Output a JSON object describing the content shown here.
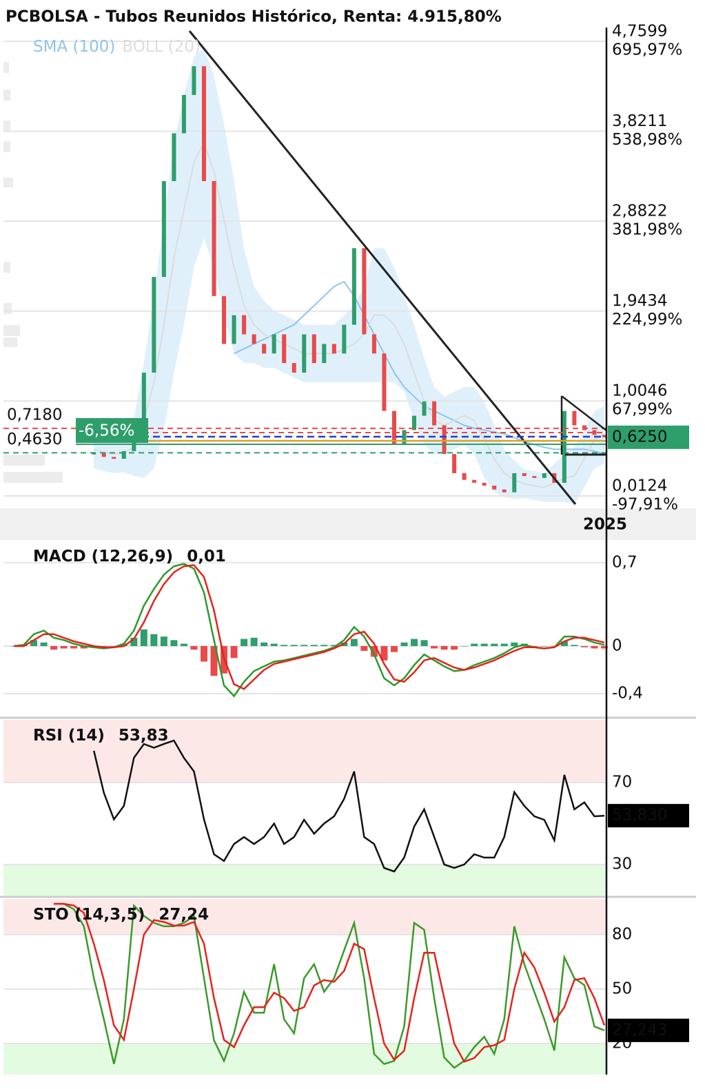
{
  "chart_data": [
    {
      "type": "candlestick",
      "title": "PCBOLSA - Tubos Reunidos Histórico, Renta: 4.915,80%",
      "values": [
        null,
        null,
        null,
        null,
        null,
        null,
        null,
        null,
        0.46,
        0.42,
        0.4,
        0.48,
        0.62,
        1.3,
        2.3,
        3.3,
        3.8,
        4.2,
        4.5,
        3.3,
        2.1,
        1.6,
        1.9,
        1.7,
        1.6,
        1.5,
        1.7,
        1.4,
        1.3,
        1.7,
        1.4,
        1.6,
        1.5,
        1.8,
        2.6,
        1.7,
        1.5,
        0.9,
        0.55,
        0.7,
        0.85,
        1.0,
        0.75,
        0.45,
        0.25,
        0.18,
        0.15,
        0.12,
        0.08,
        0.05,
        0.25,
        0.22,
        0.2,
        0.25,
        0.15,
        0.9,
        0.75,
        0.7,
        0.65,
        0.625
      ],
      "up_color": "#2e9e6b",
      "down_color": "#e84a4a",
      "series": [
        {
          "name": "SMA (100)",
          "color": "#8fc3ee",
          "values": [
            null,
            null,
            null,
            null,
            null,
            null,
            null,
            null,
            null,
            null,
            null,
            null,
            null,
            null,
            null,
            null,
            null,
            null,
            null,
            null,
            null,
            null,
            1.5,
            1.55,
            1.6,
            1.65,
            1.7,
            1.75,
            1.8,
            1.9,
            2.0,
            2.1,
            2.2,
            2.25,
            2.1,
            1.9,
            1.7,
            1.5,
            1.3,
            1.15,
            1.05,
            0.95,
            0.9,
            0.85,
            0.8,
            0.75,
            0.72,
            0.7,
            0.68,
            0.66,
            0.62,
            0.58,
            0.55,
            0.52,
            0.5,
            0.5,
            0.5,
            0.5,
            0.48,
            0.45
          ]
        },
        {
          "name": "BOLL (20)",
          "color": "#dcdcdc",
          "band_color": "#dbeefb",
          "values": [
            null,
            null,
            null,
            null,
            null,
            null,
            null,
            null,
            0.5,
            0.47,
            0.45,
            0.46,
            0.52,
            0.8,
            1.2,
            1.8,
            2.5,
            3.0,
            3.5,
            3.7,
            3.4,
            2.9,
            2.4,
            2.0,
            1.8,
            1.7,
            1.65,
            1.6,
            1.55,
            1.5,
            1.5,
            1.5,
            1.5,
            1.55,
            1.6,
            1.7,
            1.9,
            1.9,
            1.8,
            1.6,
            1.3,
            1.0,
            0.8,
            0.75,
            0.8,
            0.85,
            0.8,
            0.6,
            0.4,
            0.25,
            0.18,
            0.14,
            0.12,
            0.1,
            0.15,
            0.2,
            0.22,
            0.4,
            0.6,
            0.65
          ],
          "upper": [
            null,
            null,
            null,
            null,
            null,
            null,
            null,
            null,
            0.7,
            0.67,
            0.65,
            0.66,
            0.82,
            1.4,
            2.1,
            2.9,
            3.7,
            4.2,
            4.6,
            4.7,
            4.4,
            3.9,
            3.3,
            2.6,
            2.2,
            2.05,
            1.95,
            1.9,
            1.85,
            1.8,
            1.8,
            1.8,
            1.8,
            1.9,
            2.0,
            2.2,
            2.6,
            2.6,
            2.4,
            2.1,
            1.8,
            1.45,
            1.15,
            1.05,
            1.1,
            1.15,
            1.15,
            1.0,
            0.75,
            0.5,
            0.38,
            0.29,
            0.27,
            0.25,
            0.35,
            0.45,
            0.52,
            0.7,
            0.9,
            0.95
          ],
          "lower": [
            null,
            null,
            null,
            null,
            null,
            null,
            null,
            null,
            0.3,
            0.27,
            0.25,
            0.26,
            0.22,
            0.2,
            0.3,
            0.7,
            1.3,
            1.8,
            2.4,
            2.7,
            2.4,
            1.9,
            1.5,
            1.4,
            1.4,
            1.35,
            1.35,
            1.3,
            1.25,
            1.2,
            1.2,
            1.2,
            1.2,
            1.2,
            1.2,
            1.2,
            1.2,
            1.2,
            1.2,
            1.1,
            0.8,
            0.55,
            0.45,
            0.45,
            0.5,
            0.55,
            0.45,
            0.2,
            0.05,
            0.0,
            -0.02,
            -0.01,
            -0.03,
            -0.05,
            -0.05,
            -0.05,
            -0.08,
            0.1,
            0.3,
            0.35
          ]
        }
      ],
      "ylim": [
        -0.0955,
        4.904
      ],
      "yticks": [
        {
          "value": 0.0124,
          "label": "0,0124"
        },
        {
          "value": 1.0046,
          "label": "1,0046"
        },
        {
          "value": 1.9434,
          "label": "1,9434"
        },
        {
          "value": 2.8822,
          "label": "2,8822"
        },
        {
          "value": 3.8211,
          "label": "3,8211"
        },
        {
          "value": 4.7599,
          "label": "4,7599"
        }
      ],
      "y2lim": [
        -115.95,
        720.03
      ],
      "y2ticks": [
        {
          "value": -97.91,
          "label": "-97,91%"
        },
        {
          "value": 67.99,
          "label": "67,99%"
        },
        {
          "value": 224.99,
          "label": "224,99%"
        },
        {
          "value": 381.98,
          "label": "381,98%"
        },
        {
          "value": 538.98,
          "label": "538,98%"
        },
        {
          "value": 695.97,
          "label": "695,97%"
        }
      ],
      "y2tick_colors": [
        "#e84a4a",
        "#2e9e6b",
        "#2e9e6b",
        "#2e9e6b",
        "#2e9e6b",
        "#2e9e6b"
      ],
      "grid": true,
      "price_tag": {
        "value": 0.625,
        "label": "0,6250",
        "color": "#2e9e6b"
      },
      "reference_labels": [
        {
          "value": 0.718,
          "label": "0,7180",
          "color": "#e84a4a"
        },
        {
          "value": 0.463,
          "label": "0,4630",
          "color": "#2e9e6b"
        }
      ],
      "change_label": "-6,56%",
      "xtick_label": "2025"
    },
    {
      "type": "macd",
      "title": "MACD (12,26,9)",
      "current_label": "0,01",
      "series": [
        {
          "color": "#2a9a2a",
          "values": [
            0,
            0.01,
            0.1,
            0.13,
            0.07,
            0.05,
            0.02,
            0,
            -0.01,
            -0.02,
            -0.01,
            0.02,
            0.13,
            0.34,
            0.48,
            0.6,
            0.67,
            0.69,
            0.65,
            0.45,
            0.05,
            -0.33,
            -0.42,
            -0.3,
            -0.21,
            -0.17,
            -0.13,
            -0.12,
            -0.1,
            -0.08,
            -0.06,
            -0.04,
            -0.01,
            0.05,
            0.16,
            0.08,
            -0.07,
            -0.27,
            -0.33,
            -0.27,
            -0.16,
            -0.07,
            -0.12,
            -0.17,
            -0.21,
            -0.2,
            -0.16,
            -0.13,
            -0.1,
            -0.06,
            -0.01,
            0.01,
            -0.01,
            -0.02,
            -0.01,
            0.08,
            0.08,
            0.06,
            0.03,
            0.01
          ]
        },
        {
          "color": "#e8211b",
          "values": [
            0,
            0,
            0.05,
            0.1,
            0.1,
            0.07,
            0.04,
            0.02,
            0,
            -0.01,
            -0.01,
            0,
            0.06,
            0.2,
            0.38,
            0.52,
            0.62,
            0.67,
            0.68,
            0.58,
            0.3,
            -0.1,
            -0.32,
            -0.36,
            -0.28,
            -0.2,
            -0.15,
            -0.13,
            -0.11,
            -0.09,
            -0.07,
            -0.05,
            -0.02,
            0.02,
            0.1,
            0.12,
            0.02,
            -0.15,
            -0.28,
            -0.3,
            -0.22,
            -0.12,
            -0.1,
            -0.14,
            -0.18,
            -0.2,
            -0.18,
            -0.15,
            -0.12,
            -0.08,
            -0.04,
            -0.01,
            -0.01,
            -0.02,
            -0.01,
            0.04,
            0.07,
            0.07,
            0.05,
            0.03
          ]
        }
      ],
      "histogram": {
        "up_color": "#2e9e6b",
        "down_color": "#e84a4a",
        "values": [
          0,
          0.01,
          0.05,
          0.03,
          -0.03,
          -0.02,
          -0.02,
          -0.02,
          -0.01,
          -0.01,
          0,
          0.02,
          0.07,
          0.14,
          0.1,
          0.08,
          0.05,
          0.02,
          -0.03,
          -0.13,
          -0.25,
          -0.23,
          -0.1,
          0.06,
          0.07,
          0.03,
          0.02,
          0.01,
          0.01,
          0.01,
          0.01,
          0.01,
          0.01,
          0.03,
          0.06,
          -0.04,
          -0.09,
          -0.12,
          -0.05,
          0.03,
          0.06,
          0.05,
          -0.02,
          -0.03,
          -0.03,
          0,
          0.02,
          0.02,
          0.02,
          0.02,
          0.03,
          0.02,
          0,
          0,
          0,
          0.04,
          0.01,
          -0.01,
          -0.02,
          -0.02
        ]
      },
      "ylim": [
        -0.59,
        0.873
      ],
      "yticks": [
        {
          "value": 0.7,
          "label": "0,7"
        },
        0,
        {
          "value": -0.4,
          "label": "-0,4"
        }
      ],
      "ytick_colors": [
        "#e8211b",
        "#111111",
        "#1a8a1a"
      ],
      "grid": true
    },
    {
      "type": "line",
      "title": "RSI (14)",
      "current_label": "53,83",
      "series": [
        {
          "color": "#111111",
          "values": [
            null,
            null,
            null,
            null,
            null,
            null,
            null,
            null,
            85.5,
            65,
            52,
            58.6,
            82,
            88.8,
            87,
            88.8,
            90.5,
            82,
            75.4,
            52,
            35,
            31.7,
            40,
            43.4,
            40,
            43.4,
            50,
            40,
            43.4,
            51.8,
            45,
            50,
            53.5,
            62,
            75.4,
            43.4,
            40,
            28.3,
            26.6,
            33.4,
            48.5,
            56.9,
            43.4,
            30,
            28.3,
            30,
            35,
            33.4,
            33.4,
            43.4,
            65.3,
            58.6,
            53.5,
            51.8,
            41.8,
            73.7,
            56.9,
            60.3,
            53.5,
            53.83
          ]
        }
      ],
      "ylim": [
        14.9,
        100.6
      ],
      "yticks": [
        70,
        30
      ],
      "ytick_colors": [
        "#e8211b",
        "#1a8a1a"
      ],
      "overbought_color": "#fde8e8",
      "oversold_color": "#e3fbe0",
      "grid": true,
      "price_tag": {
        "value": 53.83,
        "label": "53,830",
        "color": "#000000"
      }
    },
    {
      "type": "line",
      "title": "STO (14,3,5)",
      "current_label": "27,24",
      "series": [
        {
          "color": "#3a9a2a",
          "values": [
            null,
            null,
            null,
            null,
            97,
            97,
            94,
            84.6,
            56,
            33.4,
            8.7,
            33.4,
            96,
            90.3,
            86.5,
            84.6,
            84.6,
            86.5,
            90.3,
            56,
            21.8,
            10.4,
            25.6,
            48.5,
            37,
            37,
            63.7,
            33.4,
            25.6,
            56,
            63.7,
            48.5,
            56,
            71.3,
            86.5,
            56,
            14.2,
            8.7,
            10.4,
            29.4,
            86.5,
            82.7,
            44.8,
            12.3,
            6.6,
            10.4,
            18,
            23.7,
            14.2,
            33.4,
            84.6,
            63.7,
            48.5,
            33.4,
            16.1,
            67.5,
            56,
            52.2,
            29.4,
            27.243
          ]
        },
        {
          "color": "#e8211b",
          "values": [
            null,
            null,
            null,
            null,
            97,
            97,
            96,
            92,
            75,
            55,
            30,
            22,
            50,
            80,
            88,
            87,
            85,
            85,
            87,
            75,
            45,
            22,
            18,
            30,
            40,
            40,
            48,
            45,
            38,
            40,
            52,
            55,
            54,
            60,
            75,
            72,
            45,
            20,
            11,
            16,
            45,
            70,
            70,
            45,
            20,
            10,
            12,
            18,
            19,
            22,
            50,
            70,
            62,
            48,
            32,
            40,
            55,
            56,
            45,
            30
          ]
        }
      ],
      "ylim": [
        2.9,
        99.7
      ],
      "yticks": [
        80,
        50,
        20
      ],
      "ytick_colors": [
        "#e8211b",
        "#111111",
        "#1a8a1a"
      ],
      "overbought_color": "#fde8e8",
      "oversold_color": "#e3fbe0",
      "grid": true,
      "price_tag": {
        "value": 27.243,
        "label": "27,243",
        "color": "#000000"
      }
    }
  ]
}
